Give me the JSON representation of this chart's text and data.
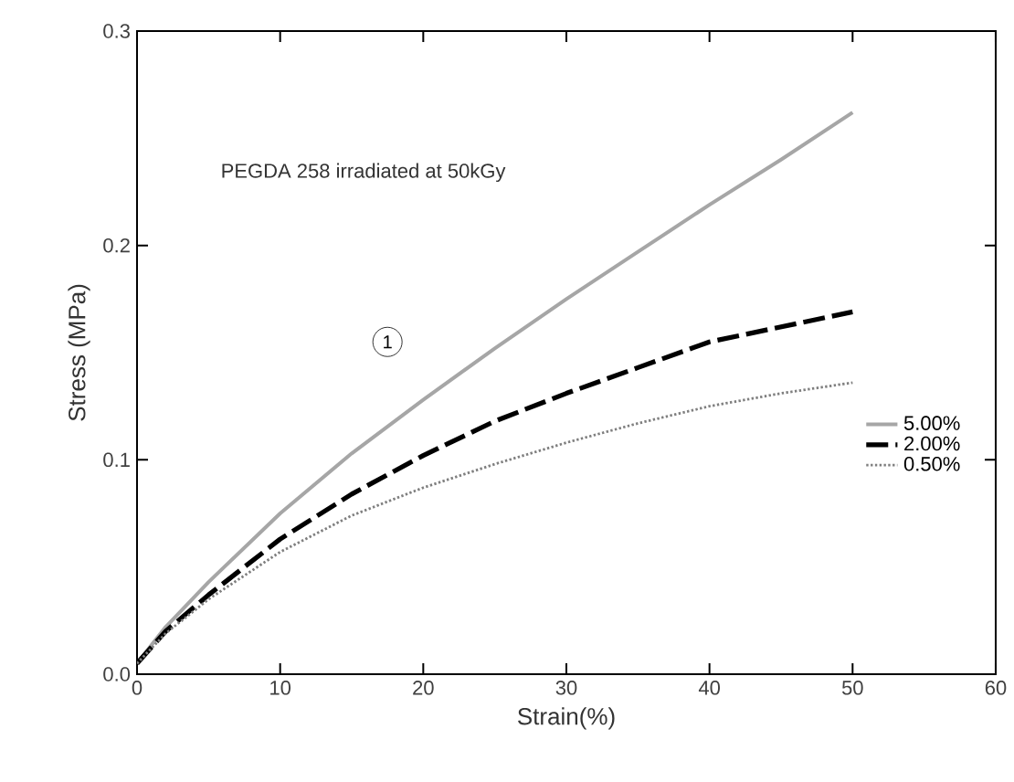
{
  "chart_data": {
    "type": "line",
    "xlabel": "Strain(%)",
    "ylabel": "Stress (MPa)",
    "xlim": [
      0,
      60
    ],
    "ylim": [
      0,
      0.3
    ],
    "xticks": [
      0,
      10,
      20,
      30,
      40,
      50,
      60
    ],
    "yticks": [
      {
        "value": 0,
        "label": "0.0"
      },
      0.1,
      0.2,
      0.3
    ],
    "grid": false,
    "legend": "bottom right",
    "marker": "none",
    "annotations": [
      "PEGDA 258 irradiated at 50kGy",
      {
        "text": "1",
        "x": 17.5,
        "y": 0.155
      }
    ],
    "series": [
      {
        "name": "5.00%",
        "color": "#a6a6a6",
        "line_style": "solid",
        "x": [
          0,
          2,
          5,
          10,
          15,
          20,
          25,
          30,
          35,
          40,
          45,
          50
        ],
        "values": [
          0.005,
          0.022,
          0.043,
          0.075,
          0.103,
          0.128,
          0.152,
          0.175,
          0.197,
          0.219,
          0.24,
          0.262
        ]
      },
      {
        "name": "2.00%",
        "color": "#000000",
        "line_style": "dashed",
        "x": [
          0,
          2,
          5,
          10,
          15,
          20,
          25,
          30,
          35,
          40,
          45,
          50
        ],
        "values": [
          0.005,
          0.02,
          0.037,
          0.063,
          0.084,
          0.102,
          0.118,
          0.131,
          0.143,
          0.155,
          0.162,
          0.169
        ]
      },
      {
        "name": "0.50%",
        "color": "#7f7f7f",
        "line_style": "dotted",
        "x": [
          0,
          2,
          5,
          10,
          15,
          20,
          25,
          30,
          35,
          40,
          45,
          50
        ],
        "values": [
          0.005,
          0.019,
          0.035,
          0.057,
          0.074,
          0.087,
          0.098,
          0.108,
          0.117,
          0.125,
          0.131,
          0.136
        ]
      }
    ]
  }
}
